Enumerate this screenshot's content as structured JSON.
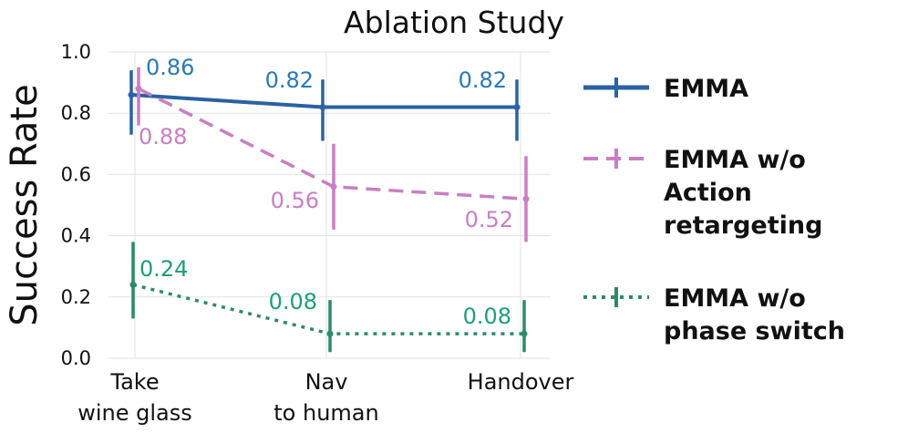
{
  "chart_data": {
    "type": "line",
    "title": "Ablation Study",
    "xlabel": "",
    "ylabel": "Success Rate",
    "categories": [
      [
        "Take",
        "wine glass"
      ],
      [
        "Nav",
        "to human"
      ],
      [
        "Handover"
      ]
    ],
    "ylim": [
      0.0,
      1.0
    ],
    "yticks": [
      "0.0",
      "0.2",
      "0.4",
      "0.6",
      "0.8",
      "1.0"
    ],
    "grid": true,
    "legend_position": "right",
    "series": [
      {
        "name": [
          "EMMA"
        ],
        "color": "#2a62a4",
        "label_color": "#2a79b5",
        "dash": "solid",
        "values": [
          0.86,
          0.82,
          0.82
        ],
        "err_low": [
          0.73,
          0.71,
          0.71
        ],
        "err_high": [
          0.94,
          0.91,
          0.91
        ],
        "labels": [
          "0.86",
          "0.82",
          "0.82"
        ]
      },
      {
        "name": [
          "EMMA w/o",
          "Action",
          "retargeting"
        ],
        "color": "#c97ec3",
        "label_color": "#c97ec3",
        "dash": "dashed",
        "values": [
          0.88,
          0.56,
          0.52
        ],
        "err_low": [
          0.76,
          0.42,
          0.38
        ],
        "err_high": [
          0.95,
          0.7,
          0.66
        ],
        "labels": [
          "0.88",
          "0.56",
          "0.52"
        ]
      },
      {
        "name": [
          "EMMA w/o",
          "phase switch"
        ],
        "color": "#2b8a6a",
        "label_color": "#1f9e78",
        "dash": "dotted",
        "values": [
          0.24,
          0.08,
          0.08
        ],
        "err_low": [
          0.13,
          0.02,
          0.02
        ],
        "err_high": [
          0.38,
          0.19,
          0.19
        ],
        "labels": [
          "0.24",
          "0.08",
          "0.08"
        ]
      }
    ]
  }
}
